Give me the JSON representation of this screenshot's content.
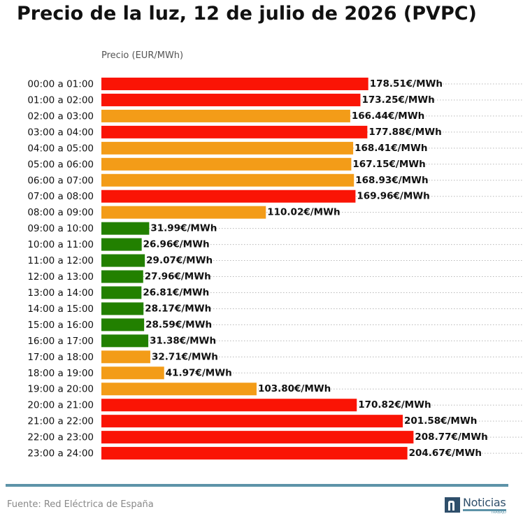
{
  "chart_data": {
    "type": "bar",
    "orientation": "horizontal",
    "title": "Precio de la luz, 12 de julio de 2026 (PVPC)",
    "ylabel": "Precio (EUR/MWh)",
    "unit_suffix": "€/MWh",
    "categories": [
      "00:00 a 01:00",
      "01:00 a 02:00",
      "02:00 a 03:00",
      "03:00 a 04:00",
      "04:00 a 05:00",
      "05:00 a 06:00",
      "06:00 a 07:00",
      "07:00 a 08:00",
      "08:00 a 09:00",
      "09:00 a 10:00",
      "10:00 a 11:00",
      "11:00 a 12:00",
      "12:00 a 13:00",
      "13:00 a 14:00",
      "14:00 a 15:00",
      "15:00 a 16:00",
      "16:00 a 17:00",
      "17:00 a 18:00",
      "18:00 a 19:00",
      "19:00 a 20:00",
      "20:00 a 21:00",
      "21:00 a 22:00",
      "22:00 a 23:00",
      "23:00 a 24:00"
    ],
    "values": [
      178.51,
      173.25,
      166.44,
      177.88,
      168.41,
      167.15,
      168.93,
      169.96,
      110.02,
      31.99,
      26.96,
      29.07,
      27.96,
      26.81,
      28.17,
      28.59,
      31.38,
      32.71,
      41.97,
      103.8,
      170.82,
      201.58,
      208.77,
      204.67
    ],
    "value_labels": [
      "178.51€/MWh",
      "173.25€/MWh",
      "166.44€/MWh",
      "177.88€/MWh",
      "168.41€/MWh",
      "167.15€/MWh",
      "168.93€/MWh",
      "169.96€/MWh",
      "110.02€/MWh",
      "31.99€/MWh",
      "26.96€/MWh",
      "29.07€/MWh",
      "27.96€/MWh",
      "26.81€/MWh",
      "28.17€/MWh",
      "28.59€/MWh",
      "31.38€/MWh",
      "32.71€/MWh",
      "41.97€/MWh",
      "103.80€/MWh",
      "170.82€/MWh",
      "201.58€/MWh",
      "208.77€/MWh",
      "204.67€/MWh"
    ],
    "bar_levels": [
      "high",
      "high",
      "medium",
      "high",
      "medium",
      "medium",
      "medium",
      "high",
      "medium",
      "low",
      "low",
      "low",
      "low",
      "low",
      "low",
      "low",
      "low",
      "medium",
      "medium",
      "medium",
      "high",
      "high",
      "high",
      "high"
    ],
    "level_colors": {
      "high": "#fa1405",
      "medium": "#f39c18",
      "low": "#228000"
    },
    "grid": "horizontal-dotted",
    "xlim": [
      0,
      210
    ]
  },
  "footer": {
    "source": "Fuente: Red Eléctrica de España",
    "logo_text": "Noticias",
    "logo_subtext": "TRABAJO"
  },
  "colors": {
    "rule": "#5d93a8",
    "logo": "#2f4f6b"
  }
}
